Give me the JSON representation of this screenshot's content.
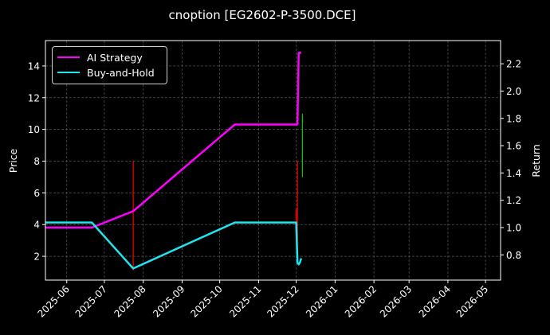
{
  "chart_data": {
    "type": "line",
    "title": "cnoption [EG2602-P-3500.DCE]",
    "ylabel": "Price",
    "y2label": "Return",
    "xlim": [
      "2025-05-15",
      "2026-05-13"
    ],
    "ylim": [
      0.5,
      15.6
    ],
    "y2lim": [
      0.615,
      2.37
    ],
    "y_ticks": [
      2,
      4,
      6,
      8,
      10,
      12,
      14
    ],
    "y2_ticks": [
      0.8,
      1.0,
      1.2,
      1.4,
      1.6,
      1.8,
      2.0,
      2.2
    ],
    "x_ticks": [
      "2025-06",
      "2025-07",
      "2025-08",
      "2025-09",
      "2025-10",
      "2025-11",
      "2025-12",
      "2026-01",
      "2026-02",
      "2026-03",
      "2026-04",
      "2026-05"
    ],
    "grid": true,
    "legend_position": "upper-left",
    "series": [
      {
        "name": "AI Strategy",
        "axis": "right",
        "color": "#ff00ff",
        "points": [
          [
            "2025-05-15",
            1.0
          ],
          [
            "2025-06-21",
            1.0
          ],
          [
            "2025-07-24",
            1.12
          ],
          [
            "2025-10-13",
            1.755
          ],
          [
            "2025-12-01",
            1.755
          ],
          [
            "2025-12-02",
            1.756
          ],
          [
            "2025-12-03",
            2.28
          ],
          [
            "2025-12-05",
            2.28
          ]
        ]
      },
      {
        "name": "Buy-and-Hold",
        "axis": "right",
        "color": "#1ee6f0",
        "points": [
          [
            "2025-05-15",
            1.037
          ],
          [
            "2025-06-21",
            1.037
          ],
          [
            "2025-07-24",
            0.7
          ],
          [
            "2025-10-13",
            1.037
          ],
          [
            "2025-12-01",
            1.037
          ],
          [
            "2025-12-02",
            0.74
          ],
          [
            "2025-12-03",
            0.73
          ],
          [
            "2025-12-04",
            0.745
          ],
          [
            "2025-12-05",
            0.775
          ]
        ]
      }
    ],
    "price_bars": [
      {
        "date": "2025-07-24",
        "low": 1.1,
        "high": 8.0,
        "color": "#ff0000"
      },
      {
        "date": "2025-12-01",
        "low": 4.0,
        "high": 5.0,
        "color": "#ff0000"
      },
      {
        "date": "2025-12-02",
        "low": 2.8,
        "high": 8.0,
        "color": "#ff0000"
      },
      {
        "date": "2025-12-06",
        "low": 7.0,
        "high": 11.0,
        "color": "#00cc00"
      }
    ]
  }
}
